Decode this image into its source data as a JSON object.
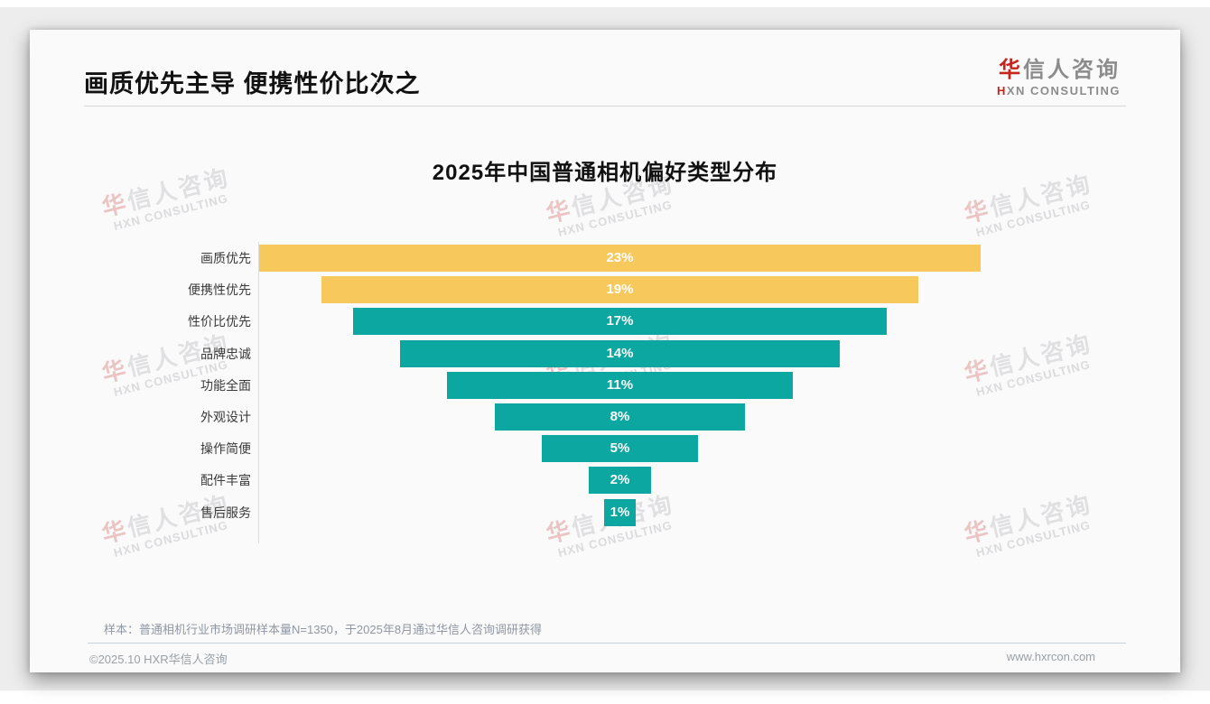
{
  "header": {
    "title": "画质优先主导 便携性价比次之"
  },
  "logo": {
    "cn_first": "华",
    "cn_rest": "信人咨询",
    "en_first": "H",
    "en_rest": "XN CONSULTING"
  },
  "watermark": {
    "line1_first": "华",
    "line1_rest": "信人咨询",
    "line2": "HXN CONSULTING"
  },
  "note": "样本：普通相机行业市场调研样本量N=1350，于2025年8月通过华信人咨询调研获得",
  "footer": {
    "left": "©2025.10 HXR华信人咨询",
    "right": "www.hxrcon.com"
  },
  "colors": {
    "highlight_bar": "#f7c85c",
    "normal_bar": "#0ba7a0",
    "logo_accent": "#c6241f",
    "card_bg": "#fafafa",
    "page_bg": "#ededed"
  },
  "chart_data": {
    "type": "bar",
    "subtype": "horizontal-centered-funnel",
    "title": "2025年中国普通相机偏好类型分布",
    "categories": [
      "画质优先",
      "便携性优先",
      "性价比优先",
      "品牌忠诚",
      "功能全面",
      "外观设计",
      "操作简便",
      "配件丰富",
      "售后服务"
    ],
    "values": [
      23,
      19,
      17,
      14,
      11,
      8,
      5,
      2,
      1
    ],
    "value_labels": [
      "23%",
      "19%",
      "17%",
      "14%",
      "11%",
      "8%",
      "5%",
      "2%",
      "1%"
    ],
    "bar_colors": [
      "#f7c85c",
      "#f7c85c",
      "#0ba7a0",
      "#0ba7a0",
      "#0ba7a0",
      "#0ba7a0",
      "#0ba7a0",
      "#0ba7a0",
      "#0ba7a0"
    ],
    "xlabel": "",
    "ylabel": "",
    "value_unit": "%",
    "xlim": [
      0,
      23
    ],
    "grid": false,
    "legend": false,
    "data_labels_inside_bars": true
  }
}
